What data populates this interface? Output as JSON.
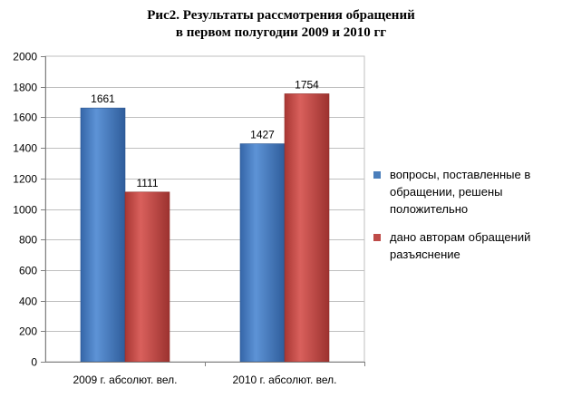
{
  "chart_data": {
    "type": "bar",
    "title_lines": [
      "Рис2. Результаты рассмотрения обращений",
      "в первом полугодии 2009 и 2010 гг"
    ],
    "categories": [
      "2009 г. абсолют. вел.",
      "2010 г. абсолют. вел."
    ],
    "series": [
      {
        "name": "вопросы, поставленные в обращении, решены положительно",
        "values": [
          1661,
          1427
        ],
        "color": "#4a7ebb"
      },
      {
        "name": "дано авторам обращений разъяснение",
        "values": [
          1111,
          1754
        ],
        "color": "#be4b48"
      }
    ],
    "ylim": [
      0,
      2000
    ],
    "yticks": [
      0,
      200,
      400,
      600,
      800,
      1000,
      1200,
      1400,
      1600,
      1800,
      2000
    ],
    "grid": true,
    "legend_position": "right",
    "data_labels": true
  }
}
